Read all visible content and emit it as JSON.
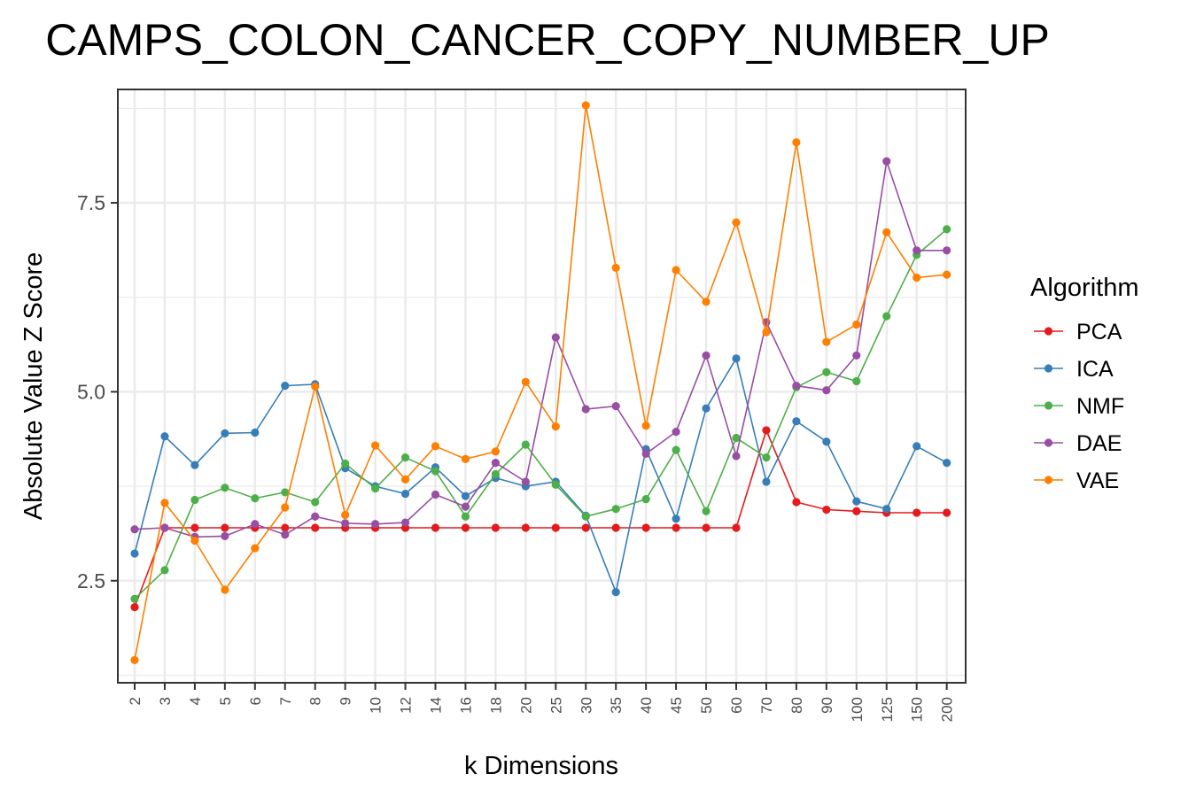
{
  "chart_data": {
    "type": "line",
    "title": "CAMPS_COLON_CANCER_COPY_NUMBER_UP",
    "xlabel": "k Dimensions",
    "ylabel": "Absolute Value Z Score",
    "categories": [
      "2",
      "3",
      "4",
      "5",
      "6",
      "7",
      "8",
      "9",
      "10",
      "12",
      "14",
      "16",
      "18",
      "20",
      "25",
      "30",
      "35",
      "40",
      "45",
      "50",
      "60",
      "70",
      "80",
      "90",
      "100",
      "125",
      "150",
      "200"
    ],
    "ylim": [
      1.15,
      9.0
    ],
    "yticks": [
      2.5,
      5.0,
      7.5
    ],
    "ytick_labels": [
      "2.5",
      "5.0",
      "7.5"
    ],
    "grid": true,
    "legend_title": "Algorithm",
    "legend_position": "right",
    "series": [
      {
        "name": "PCA",
        "color": "#e41a1c",
        "values": [
          2.15,
          3.2,
          3.2,
          3.2,
          3.2,
          3.2,
          3.2,
          3.2,
          3.2,
          3.2,
          3.2,
          3.2,
          3.2,
          3.2,
          3.2,
          3.2,
          3.2,
          3.2,
          3.2,
          3.2,
          3.2,
          4.49,
          3.54,
          3.44,
          3.42,
          3.4,
          3.4,
          3.4
        ]
      },
      {
        "name": "ICA",
        "color": "#377eb8",
        "values": [
          2.86,
          4.41,
          4.03,
          4.45,
          4.46,
          5.08,
          5.1,
          3.99,
          3.75,
          3.65,
          4.0,
          3.62,
          3.86,
          3.75,
          3.81,
          3.36,
          2.35,
          4.24,
          3.32,
          4.78,
          5.44,
          3.81,
          4.61,
          4.34,
          3.55,
          3.45,
          4.28,
          4.06
        ]
      },
      {
        "name": "NMF",
        "color": "#4daf4a",
        "values": [
          2.26,
          2.64,
          3.57,
          3.73,
          3.59,
          3.67,
          3.54,
          4.05,
          3.72,
          4.13,
          3.95,
          3.35,
          3.91,
          4.3,
          3.77,
          3.35,
          3.45,
          3.58,
          4.23,
          3.42,
          4.39,
          4.13,
          5.06,
          5.26,
          5.14,
          6.0,
          6.81,
          7.15
        ]
      },
      {
        "name": "DAE",
        "color": "#984ea3",
        "values": [
          3.18,
          3.2,
          3.08,
          3.09,
          3.25,
          3.11,
          3.35,
          3.26,
          3.25,
          3.27,
          3.64,
          3.48,
          4.06,
          3.81,
          5.72,
          4.77,
          4.81,
          4.18,
          4.47,
          5.48,
          4.15,
          5.92,
          5.08,
          5.02,
          5.48,
          8.05,
          6.87,
          6.87
        ]
      },
      {
        "name": "VAE",
        "color": "#ff7f00",
        "values": [
          1.45,
          3.53,
          3.03,
          2.38,
          2.93,
          3.47,
          5.07,
          3.37,
          4.29,
          3.84,
          4.28,
          4.11,
          4.21,
          5.13,
          4.54,
          8.79,
          6.64,
          4.55,
          6.61,
          6.19,
          7.24,
          5.79,
          8.3,
          5.66,
          5.89,
          7.11,
          6.51,
          6.55
        ]
      }
    ]
  }
}
